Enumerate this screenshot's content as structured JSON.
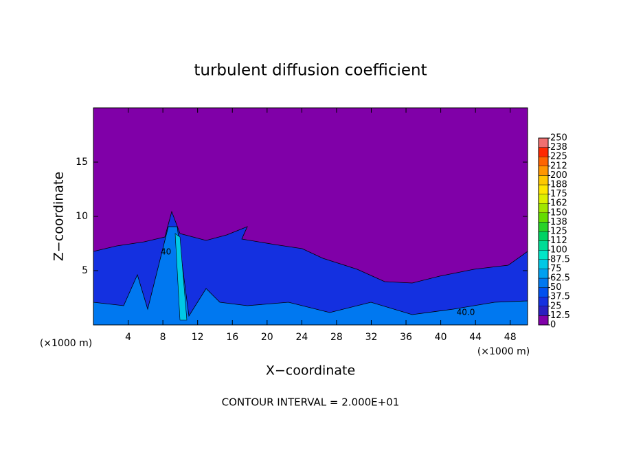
{
  "chart_data": {
    "type": "contour",
    "title": "turbulent diffusion coefficient",
    "x_label": "X−coordinate",
    "y_label": "Z−coordinate",
    "y_unit_label": "(×1000 m)",
    "x_unit_label": "(×1000 m)",
    "footer": "CONTOUR INTERVAL = 2.000E+01",
    "contour_labels": [
      "40",
      "40.0"
    ],
    "xlim": [
      0,
      50
    ],
    "xticks": [
      4,
      8,
      12,
      16,
      20,
      24,
      28,
      32,
      36,
      40,
      44,
      48
    ],
    "ylim": [
      0,
      20
    ],
    "yticks": [
      5,
      10,
      15
    ],
    "levels": [
      0,
      12.5,
      25,
      37.5,
      50,
      62.5,
      75,
      87.5,
      100,
      {
        "value": 112.5,
        "label": "112"
      },
      125,
      {
        "value": 137.5,
        "label": "138"
      },
      150,
      {
        "value": 162.5,
        "label": "162"
      },
      175,
      {
        "value": 187.5,
        "label": "188"
      },
      200,
      {
        "value": 212.5,
        "label": "212"
      },
      225,
      {
        "value": 237.5,
        "label": "238"
      },
      250
    ],
    "colors": [
      "#8000a8",
      "#2a1ec0",
      "#1430e0",
      "#0050f0",
      "#0078f0",
      "#00a0f0",
      "#00c8e6",
      "#00e6c8",
      "#00dc96",
      "#00d264",
      "#28d228",
      "#64dc00",
      "#a0e600",
      "#dcf000",
      "#ffe600",
      "#ffc800",
      "#ff9600",
      "#ff6400",
      "#ff2800",
      "#f07070"
    ]
  }
}
